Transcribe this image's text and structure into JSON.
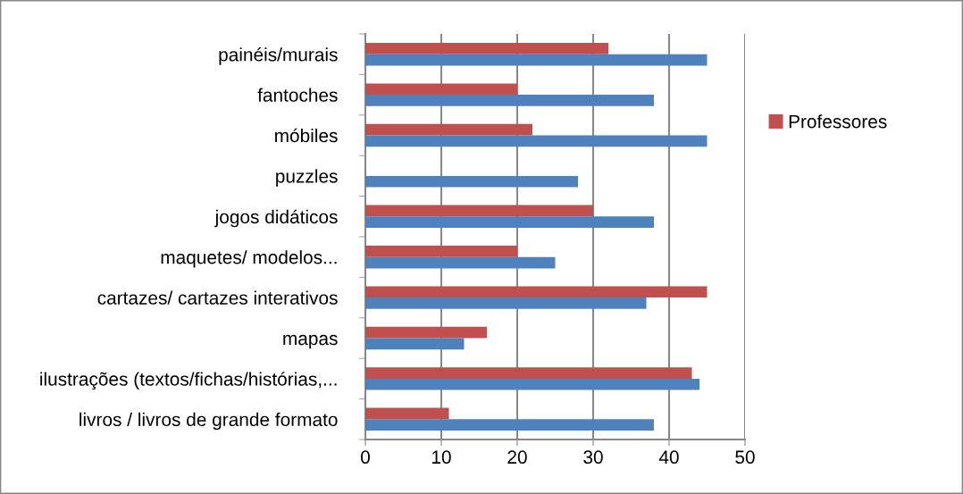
{
  "chart_data": {
    "type": "bar",
    "orientation": "horizontal",
    "categories": [
      "painéis/murais",
      "fantoches",
      "móbiles",
      "puzzles",
      "jogos didáticos",
      "maquetes/ modelos...",
      "cartazes/ cartazes interativos",
      "mapas",
      "ilustrações (textos/fichas/histórias,...",
      "livros / livros de grande formato"
    ],
    "series": [
      {
        "name": "Professores",
        "color": "#c0504d",
        "values": [
          32,
          20,
          22,
          null,
          30,
          20,
          45,
          16,
          43,
          11
        ]
      },
      {
        "color": "#4f81bd",
        "values": [
          45,
          38,
          45,
          28,
          38,
          25,
          37,
          13,
          44,
          38
        ]
      }
    ],
    "xlim": [
      0,
      50
    ],
    "xticks": [
      0,
      10,
      20,
      30,
      40,
      50
    ],
    "grid": "x",
    "legend": "right"
  }
}
